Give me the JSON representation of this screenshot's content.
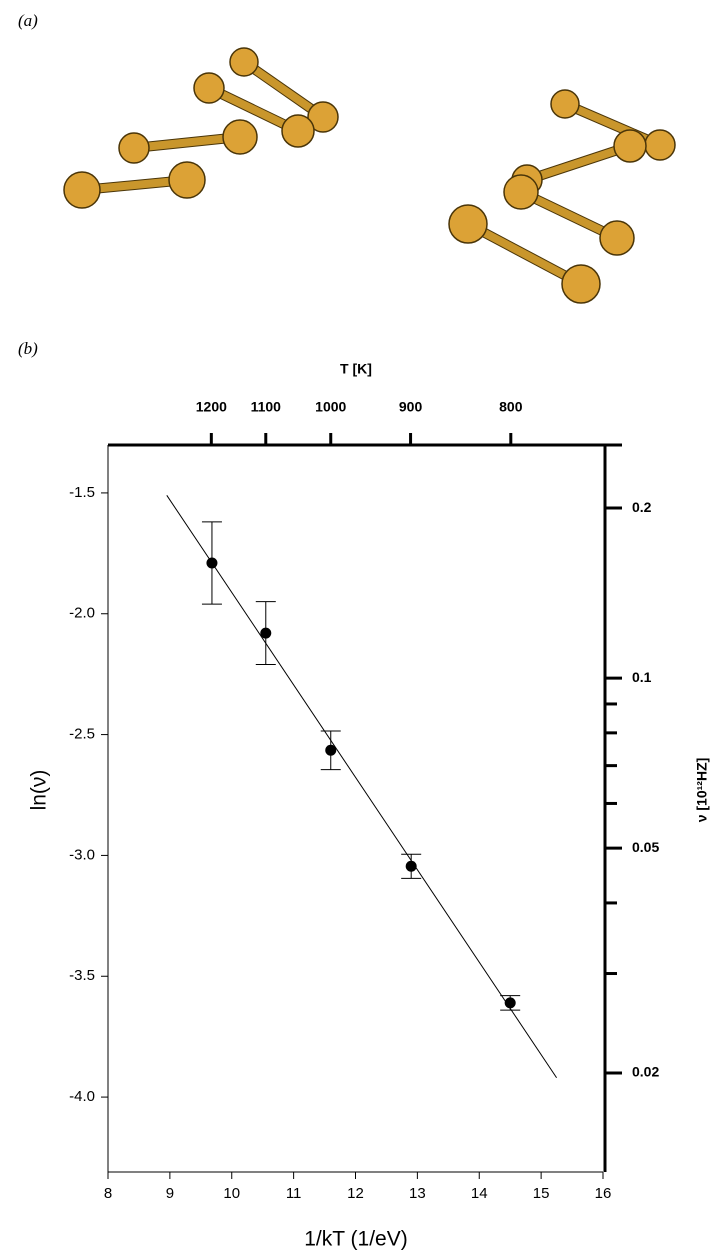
{
  "panel_a": {
    "label": "(a)"
  },
  "chart_data": {
    "type": "scatter",
    "panel_label": "(b)",
    "xlabel": "1/kT (1/eV)",
    "ylabel": "ln(ν)",
    "x2label": "T [K]",
    "y2label": "ν [10¹²HZ]",
    "xlim": [
      8,
      16
    ],
    "xticks": [
      8,
      9,
      10,
      11,
      12,
      13,
      14,
      15,
      16
    ],
    "ylim": [
      -4.31,
      -1.31
    ],
    "yticks": [
      {
        "value": -1.5,
        "label": "-1.5"
      },
      {
        "value": -2.0,
        "label": "-2.0"
      },
      {
        "value": -2.5,
        "label": "-2.5"
      },
      {
        "value": -3.0,
        "label": "-3.0"
      },
      {
        "value": -3.5,
        "label": "-3.5"
      },
      {
        "value": -4.0,
        "label": "-4.0"
      }
    ],
    "x2ticks": [
      {
        "value": 9.67,
        "label": "1200"
      },
      {
        "value": 10.55,
        "label": "1100"
      },
      {
        "value": 11.6,
        "label": "1000"
      },
      {
        "value": 12.89,
        "label": "900"
      },
      {
        "value": 14.51,
        "label": "800"
      }
    ],
    "y2scale": "log",
    "y2lim": [
      0.01336,
      0.2565
    ],
    "y2ticks": [
      0.2,
      0.1,
      0.05,
      0.02
    ],
    "y2minorticks": [
      0.09,
      0.08,
      0.07,
      0.06,
      0.04,
      0.03
    ],
    "series": [
      {
        "x": [
          9.68,
          10.55,
          11.6,
          12.9,
          14.5
        ],
        "values": [
          -1.79,
          -2.08,
          -2.565,
          -3.045,
          -3.61
        ],
        "errors": [
          0.17,
          0.13,
          0.08,
          0.05,
          0.03
        ],
        "color": "#000000"
      }
    ],
    "fit": {
      "x": [
        8.95,
        15.25
      ],
      "values": [
        -1.51,
        -3.92
      ],
      "color": "#000000"
    }
  }
}
